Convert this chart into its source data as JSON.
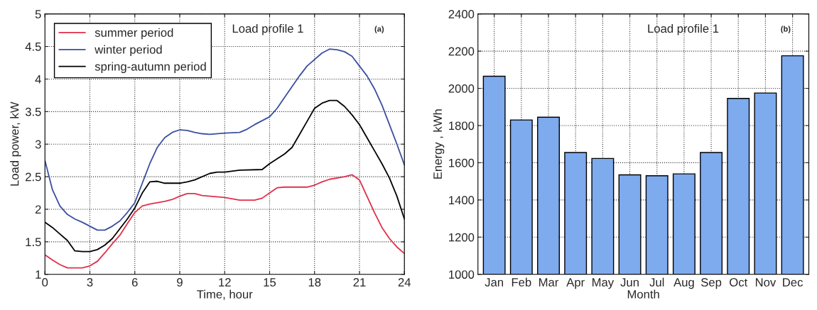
{
  "chart_data": [
    {
      "type": "line",
      "xlabel": "Time, hour",
      "ylabel": "Load power, kW",
      "annotations": [
        "Load profile 1",
        "(a)"
      ],
      "xlim": [
        0,
        24
      ],
      "xticks": [
        0,
        3,
        6,
        9,
        12,
        15,
        18,
        21,
        24
      ],
      "ylim": [
        1,
        5
      ],
      "yticks": [
        1,
        1.5,
        2,
        2.5,
        3,
        3.5,
        4,
        4.5,
        5
      ],
      "grid": true,
      "legend": "top left",
      "line_style": "solid",
      "series": [
        {
          "name": "summer period",
          "color": "#e0304a",
          "x": [
            0,
            0.5,
            1,
            1.5,
            2,
            2.5,
            3,
            3.5,
            4,
            4.5,
            5,
            5.5,
            6,
            6.5,
            7,
            8,
            8.5,
            9,
            9.5,
            10,
            10.5,
            12,
            13,
            14,
            14.5,
            15,
            15.5,
            16,
            17.5,
            18,
            18.5,
            19,
            20,
            20.5,
            21,
            21.5,
            22,
            22.5,
            23,
            23.5,
            24
          ],
          "values": [
            1.3,
            1.22,
            1.15,
            1.1,
            1.1,
            1.1,
            1.13,
            1.2,
            1.33,
            1.47,
            1.6,
            1.78,
            1.95,
            2.05,
            2.08,
            2.12,
            2.15,
            2.2,
            2.24,
            2.24,
            2.21,
            2.18,
            2.14,
            2.14,
            2.17,
            2.25,
            2.33,
            2.34,
            2.34,
            2.37,
            2.42,
            2.46,
            2.5,
            2.53,
            2.45,
            2.2,
            1.95,
            1.72,
            1.55,
            1.42,
            1.32
          ]
        },
        {
          "name": "winter period",
          "color": "#3a4fa0",
          "x": [
            0,
            0.5,
            1,
            1.5,
            2,
            2.5,
            3,
            3.5,
            4,
            4.5,
            5,
            5.5,
            6,
            6.5,
            7,
            7.5,
            8,
            8.5,
            9,
            9.5,
            10,
            10.5,
            11,
            12,
            13,
            13.5,
            14,
            15,
            15.5,
            16,
            17,
            17.5,
            18,
            18.5,
            19,
            19.5,
            20,
            20.5,
            21,
            21.5,
            22,
            22.5,
            23,
            23.5,
            24
          ],
          "values": [
            2.75,
            2.3,
            2.05,
            1.92,
            1.85,
            1.8,
            1.74,
            1.68,
            1.68,
            1.74,
            1.82,
            1.95,
            2.1,
            2.4,
            2.7,
            2.95,
            3.1,
            3.18,
            3.22,
            3.21,
            3.18,
            3.16,
            3.15,
            3.17,
            3.18,
            3.23,
            3.3,
            3.42,
            3.55,
            3.72,
            4.05,
            4.2,
            4.3,
            4.4,
            4.46,
            4.45,
            4.42,
            4.35,
            4.2,
            4.05,
            3.85,
            3.6,
            3.3,
            3.0,
            2.68
          ]
        },
        {
          "name": "spring-autumn period",
          "color": "#000000",
          "x": [
            0,
            0.5,
            1,
            1.5,
            2,
            2.5,
            3,
            3.5,
            4,
            4.5,
            5,
            5.5,
            6,
            6.5,
            7,
            7.5,
            8,
            9,
            9.5,
            10,
            11,
            11.5,
            12,
            13,
            14.5,
            15,
            16,
            16.5,
            17,
            17.5,
            18,
            18.5,
            19,
            19.5,
            20,
            20.5,
            21,
            21.5,
            22,
            22.5,
            23,
            23.5,
            24
          ],
          "values": [
            1.8,
            1.72,
            1.62,
            1.52,
            1.36,
            1.35,
            1.35,
            1.38,
            1.45,
            1.55,
            1.7,
            1.85,
            2.02,
            2.25,
            2.42,
            2.43,
            2.4,
            2.4,
            2.42,
            2.45,
            2.55,
            2.57,
            2.57,
            2.6,
            2.61,
            2.7,
            2.85,
            2.95,
            3.15,
            3.35,
            3.55,
            3.63,
            3.67,
            3.67,
            3.58,
            3.45,
            3.3,
            3.1,
            2.9,
            2.7,
            2.48,
            2.2,
            1.85
          ]
        }
      ]
    },
    {
      "type": "bar",
      "xlabel": "Month",
      "ylabel": "Energy , kWh",
      "annotations": [
        "Load profile 1",
        "(b)"
      ],
      "categories": [
        "Jan",
        "Feb",
        "Mar",
        "Apr",
        "May",
        "Jun",
        "Jul",
        "Aug",
        "Sep",
        "Oct",
        "Nov",
        "Dec"
      ],
      "values": [
        2065,
        1830,
        1845,
        1655,
        1623,
        1535,
        1530,
        1540,
        1655,
        1946,
        1975,
        2175
      ],
      "color": "#7eaaee",
      "ylim": [
        1000,
        2400
      ],
      "yticks": [
        1000,
        1200,
        1400,
        1600,
        1800,
        2000,
        2200,
        2400
      ],
      "grid": true
    }
  ]
}
